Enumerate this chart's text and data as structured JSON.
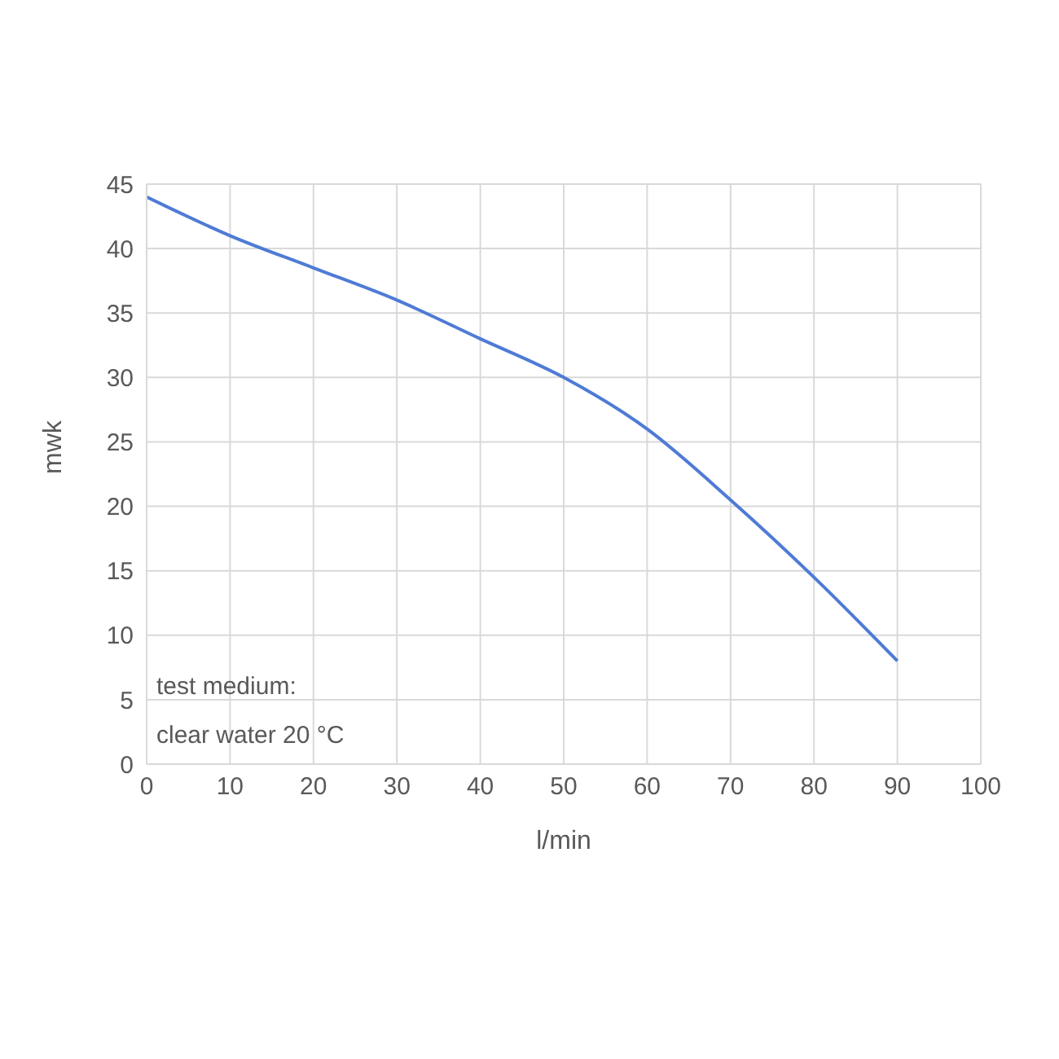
{
  "chart_data": {
    "type": "line",
    "xlabel": "l/min",
    "ylabel": "mwk",
    "x": [
      0,
      10,
      20,
      30,
      40,
      50,
      60,
      70,
      80,
      90
    ],
    "series": [
      {
        "color": "#4f7bd6",
        "values": [
          44,
          41,
          38.5,
          36,
          33,
          30,
          26,
          20.5,
          14.5,
          8
        ]
      }
    ],
    "xlim": [
      0,
      100
    ],
    "xticks": [
      0,
      10,
      20,
      30,
      40,
      50,
      60,
      70,
      80,
      90,
      100
    ],
    "ylim": [
      0,
      45
    ],
    "yticks": [
      0,
      5,
      10,
      15,
      20,
      25,
      30,
      35,
      40,
      45
    ],
    "grid": true,
    "legend": false,
    "marker": "none",
    "line_style": "solid",
    "annotations": [
      "test medium:",
      "clear water 20 °C"
    ]
  }
}
